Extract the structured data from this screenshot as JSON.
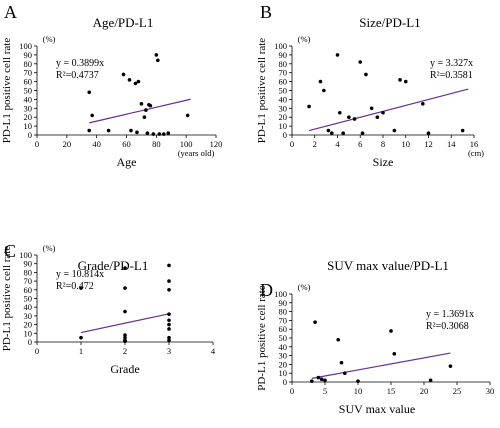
{
  "chart_data": [
    {
      "type": "scatter",
      "panel": "A",
      "title": "Age/PD-L1",
      "xlabel": "Age",
      "ylabel": "PD-L1 positive cell rate",
      "y_unit": "(%)",
      "x_unit": "(years old)",
      "xlim": [
        0,
        120
      ],
      "ylim": [
        0,
        100
      ],
      "xticks": [
        0,
        20,
        40,
        60,
        80,
        100,
        120
      ],
      "yticks": [
        0,
        10,
        20,
        30,
        40,
        50,
        60,
        70,
        80,
        90,
        100
      ],
      "equation": "y = 0.3899x",
      "r2": "R²=0.4737",
      "slope": 0.3899,
      "trend_x": [
        35,
        103
      ],
      "x": [
        35,
        35,
        37,
        48,
        58,
        62,
        63,
        66,
        67,
        68,
        70,
        72,
        73,
        74,
        75,
        76,
        78,
        80,
        81,
        82,
        85,
        88,
        101
      ],
      "y": [
        48,
        5,
        22,
        5,
        68,
        62,
        5,
        58,
        3,
        60,
        35,
        20,
        28,
        2,
        34,
        33,
        1,
        90,
        84,
        1,
        1,
        2,
        22
      ]
    },
    {
      "type": "scatter",
      "panel": "B",
      "title": "Size/PD-L1",
      "xlabel": "Size",
      "ylabel": "PD-L1 positive cell rate",
      "y_unit": "(%)",
      "x_unit": "(cm)",
      "xlim": [
        0,
        16
      ],
      "ylim": [
        0,
        100
      ],
      "xticks": [
        0,
        2,
        4,
        6,
        8,
        10,
        12,
        14,
        16
      ],
      "yticks": [
        0,
        10,
        20,
        30,
        40,
        50,
        60,
        70,
        80,
        90,
        100
      ],
      "equation": "y = 3.327x",
      "r2": "R²=0.3581",
      "slope": 3.327,
      "trend_x": [
        1.5,
        15.5
      ],
      "x": [
        1.5,
        2.5,
        2.8,
        3.2,
        3.5,
        4.0,
        4.2,
        4.5,
        5.0,
        5.5,
        6.0,
        6.2,
        6.5,
        7.0,
        7.5,
        8.0,
        9.0,
        9.5,
        10.0,
        11.5,
        12.0,
        15.0
      ],
      "y": [
        32,
        60,
        50,
        5,
        2,
        90,
        25,
        2,
        20,
        18,
        82,
        2,
        68,
        30,
        20,
        25,
        5,
        62,
        60,
        35,
        2,
        5
      ]
    },
    {
      "type": "scatter",
      "panel": "C",
      "title": "Grade/PD-L1",
      "xlabel": "Grade",
      "ylabel": "PD-L1 positive cell rate",
      "y_unit": "(%)",
      "xlim": [
        0,
        4
      ],
      "ylim": [
        0,
        100
      ],
      "xticks": [
        0,
        1,
        2,
        3,
        4
      ],
      "yticks": [
        0,
        10,
        20,
        30,
        40,
        50,
        60,
        70,
        80,
        90,
        100
      ],
      "equation": "y = 10.814x",
      "r2": "R²=0.472",
      "slope": 10.814,
      "trend_x": [
        1,
        3
      ],
      "x": [
        1,
        1,
        2,
        2,
        2,
        2,
        2,
        2,
        2,
        2,
        3,
        3,
        3,
        3,
        3,
        3,
        3,
        3,
        3
      ],
      "y": [
        62,
        5,
        85,
        62,
        35,
        8,
        5,
        2,
        1,
        1,
        88,
        70,
        60,
        32,
        25,
        20,
        15,
        5,
        2
      ]
    },
    {
      "type": "scatter",
      "panel": "D",
      "title": "SUV max value/PD-L1",
      "xlabel": "SUV max value",
      "ylabel": "PD-L1 positive cell rate",
      "y_unit": "(%)",
      "xlim": [
        0,
        30
      ],
      "ylim": [
        0,
        100
      ],
      "xticks": [
        0,
        5,
        10,
        15,
        20,
        25,
        30
      ],
      "yticks": [
        0,
        10,
        20,
        30,
        40,
        50,
        60,
        70,
        80,
        90,
        100
      ],
      "equation": "y = 1.3691x",
      "r2": "R²=0.3068",
      "slope": 1.3691,
      "trend_x": [
        3,
        24
      ],
      "x": [
        3,
        3.5,
        4,
        4.5,
        5,
        7,
        7.5,
        8,
        10,
        15,
        15.5,
        21,
        24
      ],
      "y": [
        1,
        68,
        5,
        3,
        2,
        48,
        22,
        10,
        1,
        58,
        32,
        2,
        18
      ]
    }
  ]
}
